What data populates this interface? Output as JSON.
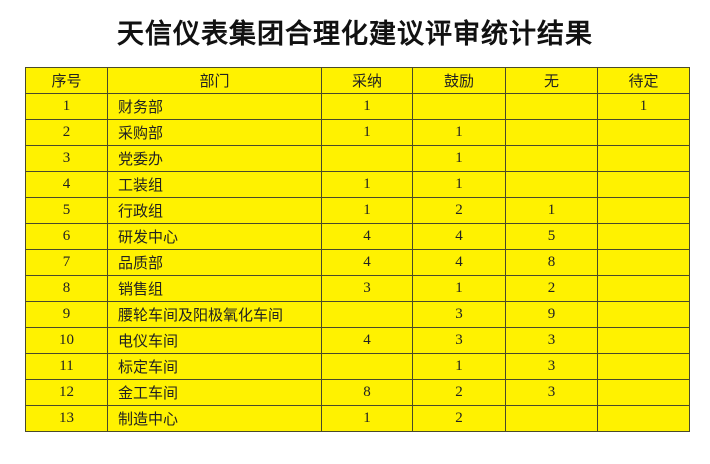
{
  "title": "天信仪表集团合理化建议评审统计结果",
  "table": {
    "headers": [
      "序号",
      "部门",
      "采纳",
      "鼓励",
      "无",
      "待定"
    ],
    "rows": [
      [
        "1",
        "财务部",
        "1",
        "",
        "",
        "1"
      ],
      [
        "2",
        "采购部",
        "1",
        "1",
        "",
        ""
      ],
      [
        "3",
        "党委办",
        "",
        "1",
        "",
        ""
      ],
      [
        "4",
        "工装组",
        "1",
        "1",
        "",
        ""
      ],
      [
        "5",
        "行政组",
        "1",
        "2",
        "1",
        ""
      ],
      [
        "6",
        "研发中心",
        "4",
        "4",
        "5",
        ""
      ],
      [
        "7",
        "品质部",
        "4",
        "4",
        "8",
        ""
      ],
      [
        "8",
        "销售组",
        "3",
        "1",
        "2",
        ""
      ],
      [
        "9",
        "腰轮车间及阳极氧化车间",
        "",
        "3",
        "9",
        ""
      ],
      [
        "10",
        "电仪车间",
        "4",
        "3",
        "3",
        ""
      ],
      [
        "11",
        "标定车间",
        "",
        "1",
        "3",
        ""
      ],
      [
        "12",
        "金工车间",
        "8",
        "2",
        "3",
        ""
      ],
      [
        "13",
        "制造中心",
        "1",
        "2",
        "",
        ""
      ]
    ]
  },
  "colors": {
    "table_fill": "#fff200",
    "border": "#4a4a2a"
  }
}
